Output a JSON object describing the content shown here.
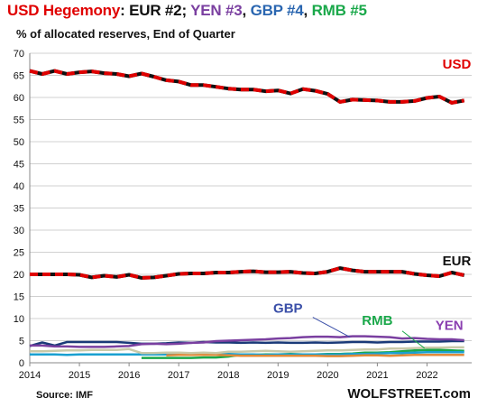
{
  "header": {
    "title_parts": [
      {
        "text": "USD Hegemony",
        "color": "#e00000"
      },
      {
        "text": ": ",
        "color": "#111111"
      },
      {
        "text": "EUR #2",
        "color": "#111111"
      },
      {
        "text": "; ",
        "color": "#111111"
      },
      {
        "text": "YEN #3",
        "color": "#7a3fa0"
      },
      {
        "text": ", ",
        "color": "#111111"
      },
      {
        "text": "GBP #4",
        "color": "#2a66b0"
      },
      {
        "text": ", ",
        "color": "#111111"
      },
      {
        "text": "RMB #5",
        "color": "#1aa84a"
      }
    ],
    "subtitle": "% of allocated reserves, End of Quarter"
  },
  "footer": {
    "source": "Source: IMF",
    "brand": "WOLFSTREET.com"
  },
  "chart_data": {
    "type": "line",
    "y_ticks": [
      0,
      5,
      10,
      15,
      20,
      25,
      30,
      35,
      40,
      45,
      50,
      55,
      60,
      65,
      70
    ],
    "x_tick_labels": [
      "2014",
      "2015",
      "2016",
      "2017",
      "2018",
      "2019",
      "2020",
      "2021",
      "2022"
    ],
    "ylim": [
      0,
      70
    ],
    "xlim": [
      2014.0,
      2022.9
    ],
    "grid": "horizontal",
    "series": [
      {
        "name": "USD",
        "color": "#e00000",
        "line": "red-black",
        "label": "USD",
        "x": [
          2014.0,
          2014.25,
          2014.5,
          2014.75,
          2015.0,
          2015.25,
          2015.5,
          2015.75,
          2016.0,
          2016.25,
          2016.5,
          2016.75,
          2017.0,
          2017.25,
          2017.5,
          2017.75,
          2018.0,
          2018.25,
          2018.5,
          2018.75,
          2019.0,
          2019.25,
          2019.5,
          2019.75,
          2020.0,
          2020.25,
          2020.5,
          2020.75,
          2021.0,
          2021.25,
          2021.5,
          2021.75,
          2022.0,
          2022.25,
          2022.5,
          2022.75
        ],
        "values": [
          66.0,
          65.3,
          66.0,
          65.3,
          65.7,
          65.9,
          65.5,
          65.3,
          64.8,
          65.4,
          64.7,
          63.9,
          63.6,
          62.8,
          62.8,
          62.4,
          62.0,
          61.8,
          61.8,
          61.4,
          61.6,
          60.9,
          61.9,
          61.5,
          60.8,
          59.0,
          59.5,
          59.4,
          59.3,
          59.0,
          59.0,
          59.2,
          59.9,
          60.2,
          58.8,
          59.3
        ]
      },
      {
        "name": "EUR",
        "color": "#111111",
        "line": "red-black",
        "label": "EUR",
        "x": [
          2014.0,
          2014.25,
          2014.5,
          2014.75,
          2015.0,
          2015.25,
          2015.5,
          2015.75,
          2016.0,
          2016.25,
          2016.5,
          2016.75,
          2017.0,
          2017.25,
          2017.5,
          2017.75,
          2018.0,
          2018.25,
          2018.5,
          2018.75,
          2019.0,
          2019.25,
          2019.5,
          2019.75,
          2020.0,
          2020.25,
          2020.5,
          2020.75,
          2021.0,
          2021.25,
          2021.5,
          2021.75,
          2022.0,
          2022.25,
          2022.5,
          2022.75
        ],
        "values": [
          20.0,
          20.0,
          20.0,
          20.0,
          19.9,
          19.3,
          19.7,
          19.4,
          19.9,
          19.2,
          19.3,
          19.7,
          20.1,
          20.2,
          20.2,
          20.4,
          20.4,
          20.6,
          20.7,
          20.5,
          20.5,
          20.6,
          20.3,
          20.2,
          20.6,
          21.4,
          20.9,
          20.6,
          20.6,
          20.6,
          20.6,
          20.1,
          19.8,
          19.6,
          20.4,
          19.8
        ]
      },
      {
        "name": "GBP",
        "color": "#1a3a78",
        "line": "solid",
        "label": "GBP",
        "x": [
          2014.0,
          2014.25,
          2014.5,
          2014.75,
          2015.0,
          2015.25,
          2015.5,
          2015.75,
          2016.0,
          2016.25,
          2016.5,
          2016.75,
          2017.0,
          2017.25,
          2017.5,
          2017.75,
          2018.0,
          2018.25,
          2018.5,
          2018.75,
          2019.0,
          2019.25,
          2019.5,
          2019.75,
          2020.0,
          2020.25,
          2020.5,
          2020.75,
          2021.0,
          2021.25,
          2021.5,
          2021.75,
          2022.0,
          2022.25,
          2022.5,
          2022.75
        ],
        "values": [
          3.8,
          4.6,
          3.9,
          4.7,
          4.7,
          4.7,
          4.7,
          4.7,
          4.5,
          4.3,
          4.3,
          4.4,
          4.6,
          4.5,
          4.7,
          4.6,
          4.6,
          4.5,
          4.6,
          4.5,
          4.6,
          4.5,
          4.5,
          4.6,
          4.5,
          4.6,
          4.7,
          4.7,
          4.6,
          4.7,
          4.7,
          4.8,
          4.8,
          4.8,
          4.9,
          4.9
        ]
      },
      {
        "name": "YEN",
        "color": "#7a3fa0",
        "line": "solid",
        "label": "YEN",
        "x": [
          2014.0,
          2014.25,
          2014.5,
          2014.75,
          2015.0,
          2015.25,
          2015.5,
          2015.75,
          2016.0,
          2016.25,
          2016.5,
          2016.75,
          2017.0,
          2017.25,
          2017.5,
          2017.75,
          2018.0,
          2018.25,
          2018.5,
          2018.75,
          2019.0,
          2019.25,
          2019.5,
          2019.75,
          2020.0,
          2020.25,
          2020.5,
          2020.75,
          2021.0,
          2021.25,
          2021.5,
          2021.75,
          2022.0,
          2022.25,
          2022.5,
          2022.75
        ],
        "values": [
          3.9,
          3.9,
          3.7,
          3.7,
          3.6,
          3.6,
          3.6,
          3.7,
          3.8,
          4.2,
          4.3,
          4.2,
          4.3,
          4.5,
          4.6,
          4.9,
          5.0,
          5.1,
          5.2,
          5.3,
          5.5,
          5.6,
          5.8,
          5.9,
          5.9,
          5.8,
          6.0,
          6.0,
          5.9,
          5.8,
          5.5,
          5.6,
          5.4,
          5.3,
          5.3,
          5.1
        ]
      },
      {
        "name": "RMB",
        "color": "#1aa84a",
        "line": "solid",
        "label": "RMB",
        "x": [
          2016.25,
          2016.5,
          2016.75,
          2017.0,
          2017.25,
          2017.5,
          2017.75,
          2018.0,
          2018.25,
          2018.5,
          2018.75,
          2019.0,
          2019.25,
          2019.5,
          2019.75,
          2020.0,
          2020.25,
          2020.5,
          2020.75,
          2021.0,
          2021.25,
          2021.5,
          2021.75,
          2022.0,
          2022.25,
          2022.5,
          2022.75
        ],
        "values": [
          1.1,
          1.1,
          1.1,
          1.1,
          1.1,
          1.2,
          1.2,
          1.4,
          1.8,
          1.8,
          1.9,
          1.9,
          2.0,
          1.9,
          1.9,
          2.0,
          2.0,
          2.1,
          2.3,
          2.3,
          2.4,
          2.6,
          2.8,
          2.9,
          2.9,
          2.8,
          2.7
        ]
      },
      {
        "name": "",
        "color": "#1aa0d0",
        "line": "solid",
        "x": [
          2014.0,
          2014.25,
          2014.5,
          2014.75,
          2015.0,
          2015.25,
          2015.5,
          2015.75,
          2016.0,
          2016.25,
          2016.5,
          2016.75,
          2017.0,
          2017.25,
          2017.5,
          2017.75,
          2018.0,
          2018.25,
          2018.5,
          2018.75,
          2019.0,
          2019.25,
          2019.5,
          2019.75,
          2020.0,
          2020.25,
          2020.5,
          2020.75,
          2021.0,
          2021.25,
          2021.5,
          2021.75,
          2022.0,
          2022.25,
          2022.5,
          2022.75
        ],
        "values": [
          1.9,
          1.9,
          1.9,
          1.8,
          1.9,
          1.9,
          1.9,
          1.9,
          1.9,
          1.9,
          1.9,
          1.9,
          1.9,
          1.9,
          2.0,
          2.0,
          2.0,
          1.9,
          1.9,
          1.8,
          1.9,
          1.9,
          1.9,
          1.9,
          1.9,
          1.9,
          2.0,
          2.0,
          2.1,
          2.2,
          2.2,
          2.3,
          2.4,
          2.4,
          2.4,
          2.4
        ]
      },
      {
        "name": "",
        "color": "#e08a3a",
        "line": "solid",
        "x": [
          2016.75,
          2017.0,
          2017.25,
          2017.5,
          2017.75,
          2018.0,
          2018.25,
          2018.5,
          2018.75,
          2019.0,
          2019.25,
          2019.5,
          2019.75,
          2020.0,
          2020.25,
          2020.5,
          2020.75,
          2021.0,
          2021.25,
          2021.5,
          2021.75,
          2022.0,
          2022.25,
          2022.5,
          2022.75
        ],
        "values": [
          1.7,
          1.8,
          1.8,
          1.8,
          1.8,
          1.7,
          1.6,
          1.6,
          1.6,
          1.6,
          1.6,
          1.6,
          1.6,
          1.5,
          1.5,
          1.6,
          1.7,
          1.7,
          1.6,
          1.7,
          1.8,
          1.8,
          1.8,
          1.8,
          1.8
        ]
      },
      {
        "name": "",
        "color": "#c9c9a8",
        "line": "solid",
        "x": [
          2014.0,
          2014.25,
          2014.5,
          2014.75,
          2015.0,
          2015.25,
          2015.5,
          2015.75,
          2016.0,
          2016.25,
          2016.5,
          2016.75,
          2017.0,
          2017.25,
          2017.5,
          2017.75,
          2018.0,
          2018.25,
          2018.5,
          2018.75,
          2019.0,
          2019.25,
          2019.5,
          2019.75,
          2020.0,
          2020.25,
          2020.5,
          2020.75,
          2021.0,
          2021.25,
          2021.5,
          2021.75,
          2022.0,
          2022.25,
          2022.5,
          2022.75
        ],
        "values": [
          2.6,
          2.6,
          2.7,
          2.8,
          2.8,
          2.9,
          2.9,
          2.9,
          3.1,
          2.2,
          2.2,
          2.3,
          2.3,
          2.2,
          2.3,
          2.2,
          2.5,
          2.5,
          2.6,
          2.7,
          2.6,
          2.5,
          2.6,
          2.7,
          2.8,
          2.8,
          2.9,
          3.0,
          3.0,
          3.2,
          3.2,
          3.3,
          3.4,
          3.4,
          3.5,
          3.5
        ]
      }
    ]
  }
}
